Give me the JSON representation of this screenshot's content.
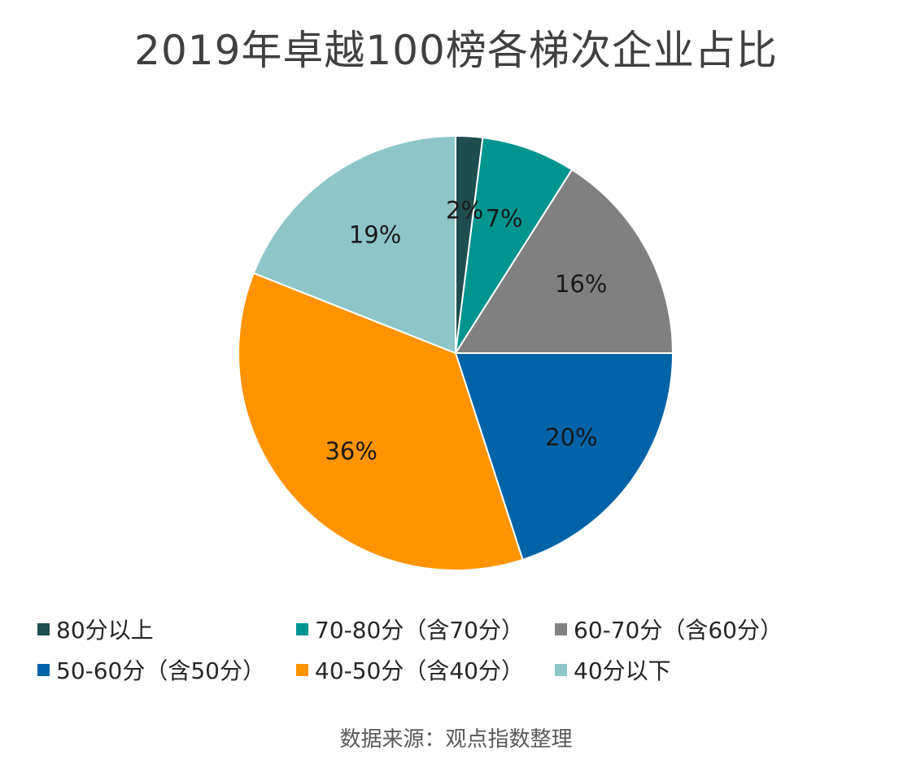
{
  "chart_data": {
    "type": "pie",
    "title": "2019年卓越100榜各梯次企业占比",
    "categories": [
      "80分以上",
      "70-80分（含70分）",
      "60-70分（含60分）",
      "50-60分（含50分）",
      "40-50分（含40分）",
      "40分以下"
    ],
    "values": [
      2,
      7,
      16,
      20,
      36,
      19
    ],
    "data_labels": [
      "2%",
      "7%",
      "16%",
      "20%",
      "36%",
      "19%"
    ],
    "colors": [
      "#1f4e4e",
      "#00948f",
      "#808080",
      "#0063a8",
      "#ff9300",
      "#8ec6c8"
    ],
    "start_angle_deg": 0,
    "direction": "clockwise",
    "legend_position": "bottom"
  },
  "source": "数据来源：观点指数整理"
}
